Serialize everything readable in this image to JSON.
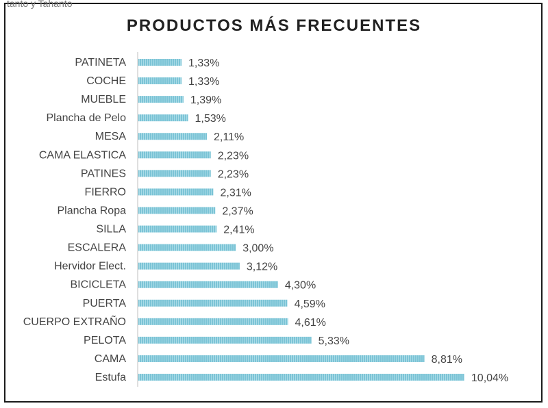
{
  "header_fragment": "tanto y Tahanto",
  "chart_data": {
    "type": "bar",
    "orientation": "horizontal",
    "title": "PRODUCTOS MÁS FRECUENTES",
    "categories": [
      "PATINETA",
      "COCHE",
      "MUEBLE",
      "Plancha de Pelo",
      "MESA",
      "CAMA ELASTICA",
      "PATINES",
      "FIERRO",
      "Plancha Ropa",
      "SILLA",
      "ESCALERA",
      "Hervidor Elect.",
      "BICICLETA",
      "PUERTA",
      "CUERPO EXTRAÑO",
      "PELOTA",
      "CAMA",
      "Estufa"
    ],
    "values": [
      1.33,
      1.33,
      1.39,
      1.53,
      2.11,
      2.23,
      2.23,
      2.31,
      2.37,
      2.41,
      3.0,
      3.12,
      4.3,
      4.59,
      4.61,
      5.33,
      8.81,
      10.04
    ],
    "labels": [
      "1,33%",
      "1,33%",
      "1,39%",
      "1,53%",
      "2,11%",
      "2,23%",
      "2,23%",
      "2,31%",
      "2,37%",
      "2,41%",
      "3,00%",
      "3,12%",
      "4,30%",
      "4,59%",
      "4,61%",
      "5,33%",
      "8,81%",
      "10,04%"
    ],
    "value_unit": "%",
    "bar_color": "#7cc4d6",
    "grid": false,
    "legend": "none"
  }
}
